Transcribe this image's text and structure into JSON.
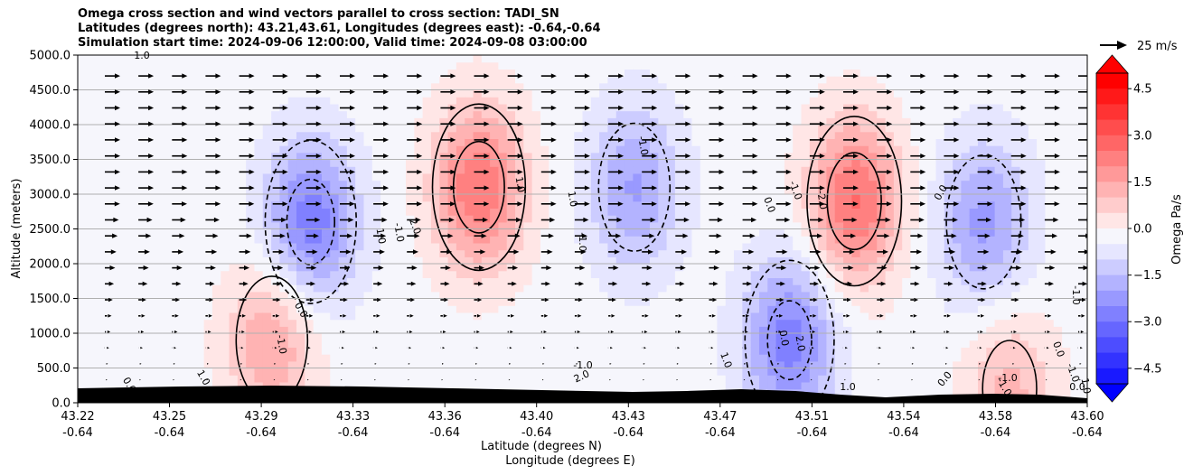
{
  "title_lines": [
    "Omega cross section and wind vectors parallel to cross section: TADI_SN",
    "Latitudes (degrees north): 43.21,43.61, Longitudes (degrees east): -0.64,-0.64",
    "Simulation start time: 2024-09-06 12:00:00, Valid time: 2024-09-08 03:00:00"
  ],
  "chart_data": {
    "type": "contourf",
    "title": "Omega cross section and wind vectors parallel to cross section: TADI_SN",
    "ylabel": "Altitude (meters)",
    "xlabel_lines": [
      "Latitude (degrees N)",
      "Longitude (degrees E)"
    ],
    "ylim": [
      0,
      5000
    ],
    "y_ticks": [
      "0.0",
      "500.0",
      "1000.0",
      "1500.0",
      "2000.0",
      "2500.0",
      "3000.0",
      "3500.0",
      "4000.0",
      "4500.0",
      "5000.0"
    ],
    "x_ticks_lat": [
      "43.22",
      "43.25",
      "43.29",
      "43.33",
      "43.36",
      "43.40",
      "43.43",
      "43.47",
      "43.51",
      "43.54",
      "43.58",
      "43.60"
    ],
    "x_ticks_lon": [
      "-0.64",
      "-0.64",
      "-0.64",
      "-0.64",
      "-0.64",
      "-0.64",
      "-0.64",
      "-0.64",
      "-0.64",
      "-0.64",
      "-0.64",
      "-0.64"
    ],
    "grid": "horizontal",
    "colorbar": {
      "label": "Omega Pa/s",
      "range": [
        -5,
        5
      ],
      "ticks": [
        "−4.5",
        "−3.0",
        "−1.5",
        "0.0",
        "1.5",
        "3.0",
        "4.5"
      ],
      "cmap": "bwr",
      "extend": "both"
    },
    "contour_levels": [
      -2.0,
      -1.0,
      0.0,
      1.0,
      2.0
    ],
    "contour_labels": [
      "1.0",
      "0.0",
      "1.0",
      "-1.0",
      "0.0",
      "1.0",
      "-1.0",
      "2.0",
      "1.0",
      "1.0",
      "-1.0",
      "-1.0",
      "-1.0",
      "2.0",
      "1.0",
      "0.0",
      "-1.0",
      "-2.0",
      "0.0",
      "2.0",
      "1.0",
      "0.0",
      "0.0",
      "-1.0",
      "0.0",
      "-1.0",
      "-1.0",
      "1.0",
      "-1.0",
      "0.0"
    ],
    "quiver_key": "25 m/s",
    "features": [
      {
        "kind": "descent",
        "center_lat": 43.29,
        "center_alt": 900,
        "peak": 1.8
      },
      {
        "kind": "ascent",
        "center_lat": 43.305,
        "center_alt": 2600,
        "peak": -2.6
      },
      {
        "kind": "descent",
        "center_lat": 43.37,
        "center_alt": 3100,
        "peak": 2.7
      },
      {
        "kind": "ascent",
        "center_lat": 43.43,
        "center_alt": 3100,
        "peak": -1.8
      },
      {
        "kind": "ascent",
        "center_lat": 43.49,
        "center_alt": 900,
        "peak": -2.5
      },
      {
        "kind": "descent",
        "center_lat": 43.515,
        "center_alt": 2900,
        "peak": 2.8
      },
      {
        "kind": "ascent",
        "center_lat": 43.565,
        "center_alt": 2600,
        "peak": -1.9
      },
      {
        "kind": "descent",
        "center_lat": 43.575,
        "center_alt": 200,
        "peak": 1.4
      }
    ]
  }
}
